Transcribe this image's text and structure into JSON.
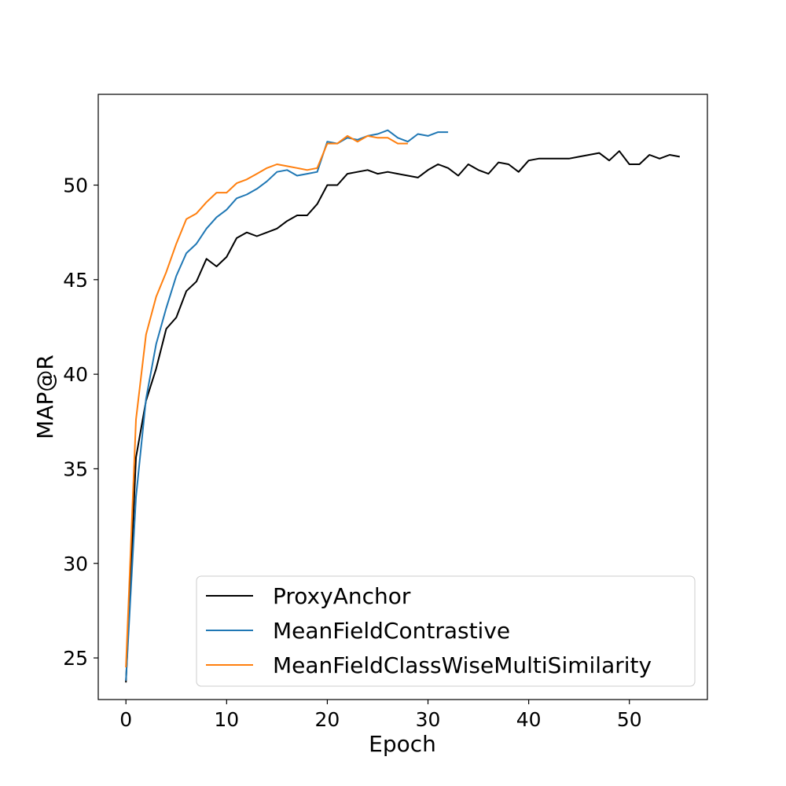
{
  "chart_data": {
    "type": "line",
    "xlabel": "Epoch",
    "ylabel": "MAP@R",
    "xlim": [
      -2.75,
      57.75
    ],
    "ylim": [
      22.8,
      54.8
    ],
    "xticks": [
      0,
      10,
      20,
      30,
      40,
      50
    ],
    "yticks": [
      25,
      30,
      35,
      40,
      45,
      50
    ],
    "grid": false,
    "legend_position": "lower-right",
    "series": [
      {
        "name": "ProxyAnchor",
        "color": "#000000",
        "x": [
          0,
          1,
          2,
          3,
          4,
          5,
          6,
          7,
          8,
          9,
          10,
          11,
          12,
          13,
          14,
          15,
          16,
          17,
          18,
          19,
          20,
          21,
          22,
          23,
          24,
          25,
          26,
          27,
          28,
          29,
          30,
          31,
          32,
          33,
          34,
          35,
          36,
          37,
          38,
          39,
          40,
          41,
          42,
          43,
          44,
          45,
          46,
          47,
          48,
          49,
          50,
          51,
          52,
          53,
          54,
          55
        ],
        "y": [
          23.7,
          35.6,
          38.6,
          40.3,
          42.4,
          43.0,
          44.4,
          44.9,
          46.1,
          45.7,
          46.2,
          47.2,
          47.5,
          47.3,
          47.5,
          47.7,
          48.1,
          48.4,
          48.4,
          49.0,
          50.0,
          50.0,
          50.6,
          50.7,
          50.8,
          50.6,
          50.7,
          50.6,
          50.5,
          50.4,
          50.8,
          51.1,
          50.9,
          50.5,
          51.1,
          50.8,
          50.6,
          51.2,
          51.1,
          50.7,
          51.3,
          51.4,
          51.4,
          51.4,
          51.4,
          51.5,
          51.6,
          51.7,
          51.3,
          51.8,
          51.1,
          51.1,
          51.6,
          51.4,
          51.6,
          51.5
        ]
      },
      {
        "name": "MeanFieldContrastive",
        "color": "#1f77b4",
        "x": [
          0,
          1,
          2,
          3,
          4,
          5,
          6,
          7,
          8,
          9,
          10,
          11,
          12,
          13,
          14,
          15,
          16,
          17,
          18,
          19,
          20,
          21,
          22,
          23,
          24,
          25,
          26,
          27,
          28,
          29,
          30,
          31,
          32
        ],
        "y": [
          23.8,
          33.5,
          38.7,
          41.6,
          43.5,
          45.2,
          46.4,
          46.9,
          47.7,
          48.3,
          48.7,
          49.3,
          49.5,
          49.8,
          50.2,
          50.7,
          50.8,
          50.5,
          50.6,
          50.7,
          52.3,
          52.2,
          52.5,
          52.4,
          52.6,
          52.7,
          52.9,
          52.5,
          52.3,
          52.7,
          52.6,
          52.8,
          52.8
        ]
      },
      {
        "name": "MeanFieldClassWiseMultiSimilarity",
        "color": "#ff7f0e",
        "x": [
          0,
          1,
          2,
          3,
          4,
          5,
          6,
          7,
          8,
          9,
          10,
          11,
          12,
          13,
          14,
          15,
          16,
          17,
          18,
          19,
          20,
          21,
          22,
          23,
          24,
          25,
          26,
          27,
          28
        ],
        "y": [
          24.5,
          37.6,
          42.1,
          44.1,
          45.4,
          46.9,
          48.2,
          48.5,
          49.1,
          49.6,
          49.6,
          50.1,
          50.3,
          50.6,
          50.9,
          51.1,
          51.0,
          50.9,
          50.8,
          50.9,
          52.2,
          52.2,
          52.6,
          52.3,
          52.6,
          52.5,
          52.5,
          52.2,
          52.2
        ]
      }
    ]
  }
}
